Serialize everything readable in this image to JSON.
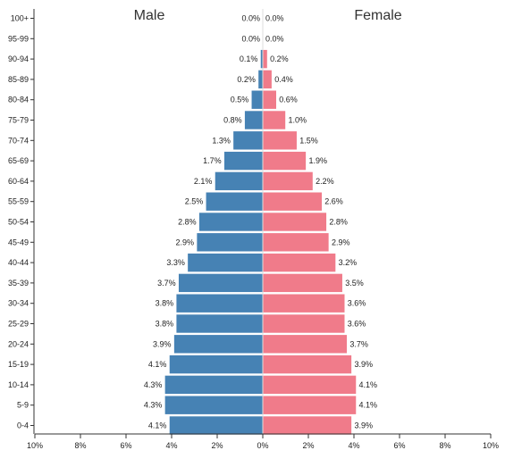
{
  "chart_data": {
    "type": "bar",
    "orientation": "horizontal",
    "layout": "population-pyramid",
    "titles": {
      "left": "Male",
      "right": "Female"
    },
    "categories": [
      "100+",
      "95-99",
      "90-94",
      "85-89",
      "80-84",
      "75-79",
      "70-74",
      "65-69",
      "60-64",
      "55-59",
      "50-54",
      "45-49",
      "40-44",
      "35-39",
      "30-34",
      "25-29",
      "20-24",
      "15-19",
      "10-14",
      "5-9",
      "0-4"
    ],
    "series": [
      {
        "name": "Male",
        "color": "#4682b4",
        "values": [
          0.0,
          0.0,
          0.1,
          0.2,
          0.5,
          0.8,
          1.3,
          1.7,
          2.1,
          2.5,
          2.8,
          2.9,
          3.3,
          3.7,
          3.8,
          3.8,
          3.9,
          4.1,
          4.3,
          4.3,
          4.1
        ],
        "labels": [
          "0.0%",
          "0.0%",
          "0.1%",
          "0.2%",
          "0.5%",
          "0.8%",
          "1.3%",
          "1.7%",
          "2.1%",
          "2.5%",
          "2.8%",
          "2.9%",
          "3.3%",
          "3.7%",
          "3.8%",
          "3.8%",
          "3.9%",
          "4.1%",
          "4.3%",
          "4.3%",
          "4.1%"
        ]
      },
      {
        "name": "Female",
        "color": "#f07b8a",
        "values": [
          0.0,
          0.0,
          0.2,
          0.4,
          0.6,
          1.0,
          1.5,
          1.9,
          2.2,
          2.6,
          2.8,
          2.9,
          3.2,
          3.5,
          3.6,
          3.6,
          3.7,
          3.9,
          4.1,
          4.1,
          3.9
        ],
        "labels": [
          "0.0%",
          "0.0%",
          "0.2%",
          "0.4%",
          "0.6%",
          "1.0%",
          "1.5%",
          "1.9%",
          "2.2%",
          "2.6%",
          "2.8%",
          "2.9%",
          "3.2%",
          "3.5%",
          "3.6%",
          "3.6%",
          "3.7%",
          "3.9%",
          "4.1%",
          "4.1%",
          "3.9%"
        ]
      }
    ],
    "xlim": [
      -10,
      10
    ],
    "x_ticks": [
      "10%",
      "8%",
      "6%",
      "4%",
      "2%",
      "0%",
      "2%",
      "4%",
      "6%",
      "8%",
      "10%"
    ],
    "grid": false,
    "legend": "none"
  }
}
